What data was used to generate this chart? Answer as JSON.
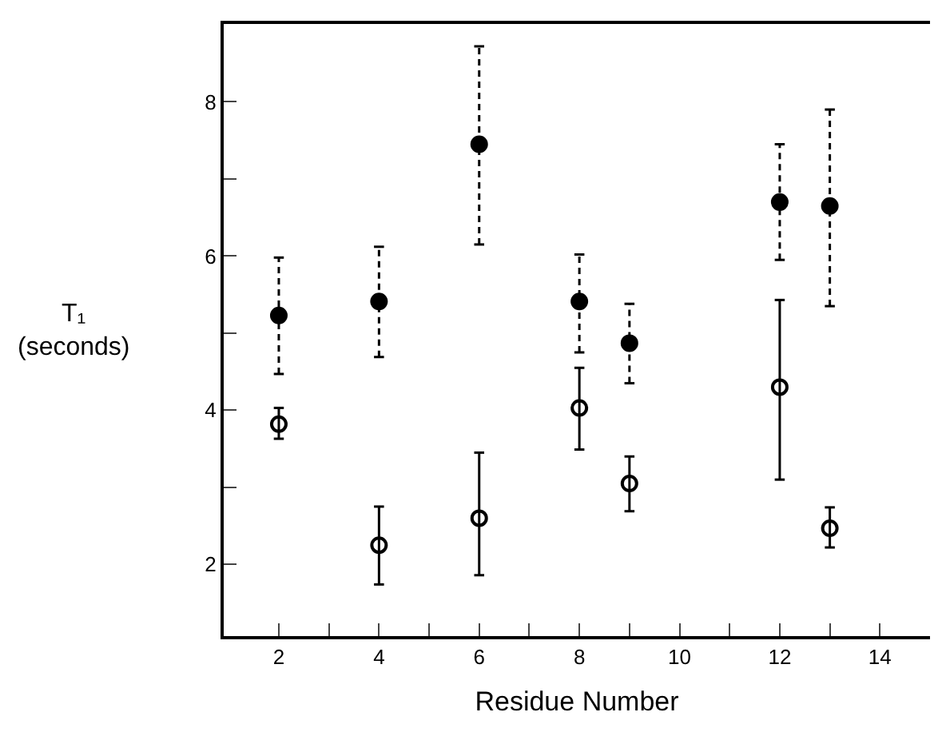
{
  "chart_data": {
    "type": "scatter",
    "xlabel": "Residue Number",
    "ylabel": "T₁\n(seconds)",
    "x": [
      2,
      4,
      6,
      8,
      9,
      12,
      13
    ],
    "series": [
      {
        "color": "#000000",
        "marker": "circle",
        "line_style": "dashed",
        "values": [
          5.23,
          5.41,
          7.45,
          5.41,
          4.87,
          6.7,
          6.65
        ],
        "errors": [
          [
            4.47,
            5.98
          ],
          [
            4.69,
            6.12
          ],
          [
            6.15,
            8.72
          ],
          [
            4.75,
            6.02
          ],
          [
            4.35,
            5.38
          ],
          [
            5.95,
            7.45
          ],
          [
            5.35,
            7.9
          ]
        ]
      },
      {
        "color": "#000000",
        "marker": "circle",
        "line_style": "solid",
        "values": [
          3.82,
          2.25,
          2.6,
          4.03,
          3.05,
          4.3,
          2.47
        ],
        "errors": [
          [
            3.63,
            4.03
          ],
          [
            1.74,
            2.75
          ],
          [
            1.86,
            3.45
          ],
          [
            3.49,
            4.55
          ],
          [
            2.69,
            3.4
          ],
          [
            3.1,
            5.43
          ],
          [
            2.22,
            2.74
          ]
        ]
      }
    ],
    "xlim": [
      0.9,
      15.0
    ],
    "ylim": [
      1.07,
      9.01
    ],
    "xticks": [
      2,
      {
        "value": 3,
        "label": null
      },
      4,
      {
        "value": 5,
        "label": null
      },
      6,
      {
        "value": 7,
        "label": null
      },
      8,
      {
        "value": 9,
        "label": null
      },
      10,
      {
        "value": 11,
        "label": null
      },
      12,
      {
        "value": 13,
        "label": null
      },
      14
    ],
    "yticks": [
      2,
      {
        "value": 3,
        "label": null
      },
      4,
      {
        "value": 5,
        "label": null
      },
      6,
      {
        "value": 7,
        "label": null
      },
      8
    ]
  }
}
